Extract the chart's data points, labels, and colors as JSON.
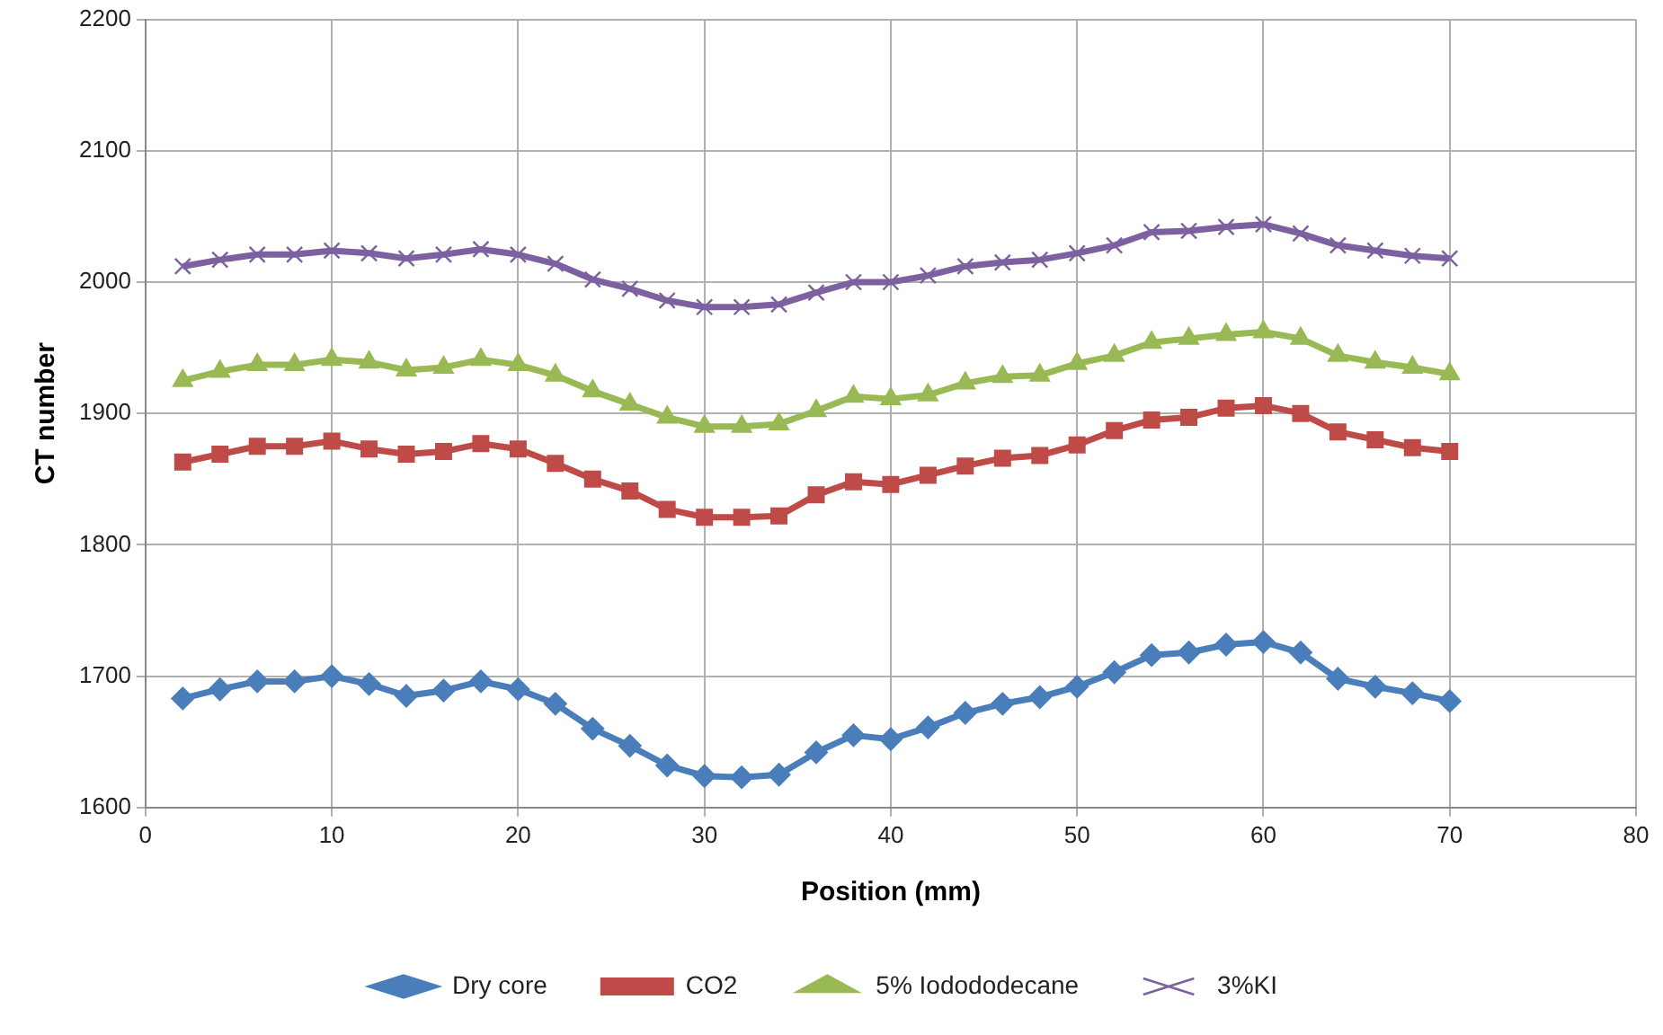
{
  "chart_data": {
    "type": "line",
    "xlabel": "Position (mm)",
    "ylabel": "CT number",
    "x": [
      2,
      4,
      6,
      8,
      10,
      12,
      14,
      16,
      18,
      20,
      22,
      24,
      26,
      28,
      30,
      32,
      34,
      36,
      38,
      40,
      42,
      44,
      46,
      48,
      50,
      52,
      54,
      56,
      58,
      60,
      62,
      64,
      66,
      68,
      70
    ],
    "xlim": [
      0,
      80
    ],
    "xticks": [
      0,
      10,
      20,
      30,
      40,
      50,
      60,
      70,
      80
    ],
    "ylim": [
      1600,
      2200
    ],
    "yticks": [
      1600,
      1700,
      1800,
      1900,
      2000,
      2100,
      2200
    ],
    "grid": true,
    "legend": "bottom",
    "line_style": "solid",
    "series": [
      {
        "name": "Dry core",
        "color": "#4a7ebb",
        "marker": "diamond",
        "values": [
          1683,
          1690,
          1696,
          1696,
          1700,
          1694,
          1685,
          1689,
          1696,
          1690,
          1679,
          1660,
          1647,
          1632,
          1624,
          1623,
          1625,
          1642,
          1655,
          1652,
          1661,
          1672,
          1679,
          1684,
          1692,
          1703,
          1716,
          1718,
          1724,
          1726,
          1718,
          1698,
          1692,
          1687,
          1681
        ]
      },
      {
        "name": "CO2",
        "color": "#be4b48",
        "marker": "square",
        "values": [
          1863,
          1869,
          1875,
          1875,
          1879,
          1873,
          1869,
          1871,
          1877,
          1873,
          1862,
          1850,
          1841,
          1827,
          1821,
          1821,
          1822,
          1838,
          1848,
          1846,
          1853,
          1860,
          1866,
          1868,
          1876,
          1887,
          1895,
          1897,
          1904,
          1906,
          1900,
          1886,
          1880,
          1874,
          1871
        ]
      },
      {
        "name": "5% Iodododecane",
        "color": "#98b954",
        "marker": "triangle",
        "values": [
          1925,
          1932,
          1937,
          1937,
          1941,
          1939,
          1933,
          1935,
          1941,
          1937,
          1929,
          1917,
          1907,
          1897,
          1890,
          1890,
          1892,
          1902,
          1913,
          1911,
          1914,
          1923,
          1928,
          1929,
          1938,
          1944,
          1954,
          1957,
          1960,
          1962,
          1957,
          1944,
          1939,
          1935,
          1930
        ]
      },
      {
        "name": "3%KI",
        "color": "#7d60a0",
        "marker": "cross",
        "values": [
          2012,
          2017,
          2021,
          2021,
          2024,
          2022,
          2018,
          2021,
          2025,
          2021,
          2014,
          2002,
          1995,
          1986,
          1981,
          1981,
          1983,
          1992,
          2000,
          2000,
          2005,
          2012,
          2015,
          2017,
          2022,
          2028,
          2038,
          2039,
          2042,
          2044,
          2037,
          2028,
          2024,
          2020,
          2018
        ]
      }
    ]
  }
}
